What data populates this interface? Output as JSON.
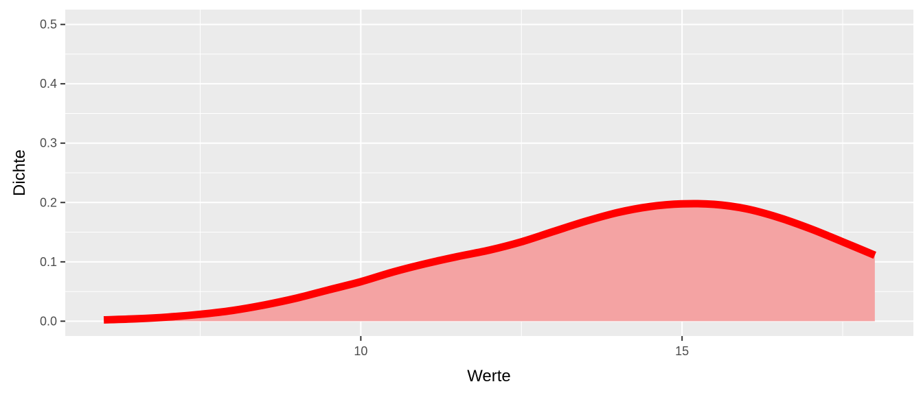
{
  "chart_data": {
    "type": "area",
    "title": "",
    "xlabel": "Werte",
    "ylabel": "Dichte",
    "xlim": [
      5.4,
      18.6
    ],
    "ylim": [
      -0.025,
      0.525
    ],
    "x_ticks": [
      10,
      15
    ],
    "x_tick_labels": [
      "10",
      "15"
    ],
    "x_minor_breaks": [
      7.5,
      12.5,
      17.5
    ],
    "y_ticks": [
      0.0,
      0.1,
      0.2,
      0.3,
      0.4,
      0.5
    ],
    "y_tick_labels": [
      "0.0",
      "0.1",
      "0.2",
      "0.3",
      "0.4",
      "0.5"
    ],
    "y_minor_breaks": [
      0.05,
      0.15,
      0.25,
      0.35,
      0.45
    ],
    "grid": true,
    "legend": "none",
    "series": [
      {
        "x": [
          6.0,
          6.5,
          7.0,
          7.5,
          8.0,
          8.5,
          9.0,
          9.5,
          10.0,
          10.5,
          11.0,
          11.5,
          12.0,
          12.5,
          13.0,
          13.5,
          14.0,
          14.5,
          15.0,
          15.5,
          16.0,
          16.5,
          17.0,
          17.5,
          18.0
        ],
        "y": [
          0.0022,
          0.004,
          0.007,
          0.0116,
          0.018,
          0.0273,
          0.0388,
          0.0528,
          0.0665,
          0.0828,
          0.0967,
          0.1088,
          0.1197,
          0.1337,
          0.1512,
          0.1684,
          0.1831,
          0.1931,
          0.1977,
          0.1968,
          0.1893,
          0.1748,
          0.1557,
          0.1337,
          0.1111
        ]
      }
    ],
    "colors": {
      "line": "#ff0000",
      "fill": "#f4a3a3",
      "panel": "#ebebeb",
      "grid": "#ffffff"
    }
  }
}
